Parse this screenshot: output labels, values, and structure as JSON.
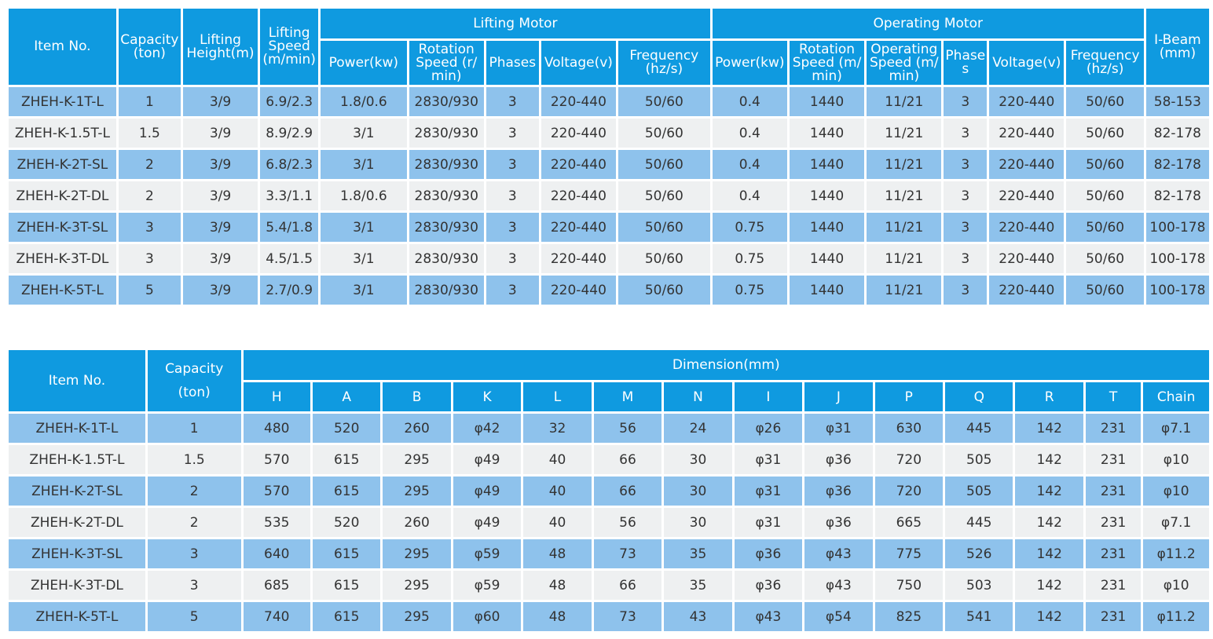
{
  "table1": {
    "headers": {
      "item_no": "Item No.",
      "capacity": "Capacity (ton)",
      "lifting_height": "Lifting Height(m)",
      "lifting_speed": "Lifting Speed (m/min)",
      "lifting_motor": "Lifting Motor",
      "operating_motor": "Operating Motor",
      "i_beam": "I-Beam (mm)",
      "lm_sub": [
        "Power(kw)",
        "Rotation Speed (r/ min)",
        "Phases",
        "Voltage(v)",
        "Frequency (hz/s)"
      ],
      "om_sub": [
        "Power(kw)",
        "Rotation Speed (m/ min)",
        "Operating Speed (m/ min)",
        "Phases",
        "Voltage(v)",
        "Frequency (hz/s)"
      ]
    },
    "rows": [
      [
        "ZHEH-K-1T-L",
        "1",
        "3/9",
        "6.9/2.3",
        "1.8/0.6",
        "2830/930",
        "3",
        "220-440",
        "50/60",
        "0.4",
        "1440",
        "11/21",
        "3",
        "220-440",
        "50/60",
        "58-153"
      ],
      [
        "ZHEH-K-1.5T-L",
        "1.5",
        "3/9",
        "8.9/2.9",
        "3/1",
        "2830/930",
        "3",
        "220-440",
        "50/60",
        "0.4",
        "1440",
        "11/21",
        "3",
        "220-440",
        "50/60",
        "82-178"
      ],
      [
        "ZHEH-K-2T-SL",
        "2",
        "3/9",
        "6.8/2.3",
        "3/1",
        "2830/930",
        "3",
        "220-440",
        "50/60",
        "0.4",
        "1440",
        "11/21",
        "3",
        "220-440",
        "50/60",
        "82-178"
      ],
      [
        "ZHEH-K-2T-DL",
        "2",
        "3/9",
        "3.3/1.1",
        "1.8/0.6",
        "2830/930",
        "3",
        "220-440",
        "50/60",
        "0.4",
        "1440",
        "11/21",
        "3",
        "220-440",
        "50/60",
        "82-178"
      ],
      [
        "ZHEH-K-3T-SL",
        "3",
        "3/9",
        "5.4/1.8",
        "3/1",
        "2830/930",
        "3",
        "220-440",
        "50/60",
        "0.75",
        "1440",
        "11/21",
        "3",
        "220-440",
        "50/60",
        "100-178"
      ],
      [
        "ZHEH-K-3T-DL",
        "3",
        "3/9",
        "4.5/1.5",
        "3/1",
        "2830/930",
        "3",
        "220-440",
        "50/60",
        "0.75",
        "1440",
        "11/21",
        "3",
        "220-440",
        "50/60",
        "100-178"
      ],
      [
        "ZHEH-K-5T-L",
        "5",
        "3/9",
        "2.7/0.9",
        "3/1",
        "2830/930",
        "3",
        "220-440",
        "50/60",
        "0.75",
        "1440",
        "11/21",
        "3",
        "220-440",
        "50/60",
        "100-178"
      ]
    ]
  },
  "table2": {
    "headers": {
      "item_no": "Item No.",
      "capacity": "Capacity (ton)",
      "dimension": "Dimension(mm)",
      "dims": [
        "H",
        "A",
        "B",
        "K",
        "L",
        "M",
        "N",
        "I",
        "J",
        "P",
        "Q",
        "R",
        "T",
        "Chain"
      ]
    },
    "rows": [
      [
        "ZHEH-K-1T-L",
        "1",
        "480",
        "520",
        "260",
        "φ42",
        "32",
        "56",
        "24",
        "φ26",
        "φ31",
        "630",
        "445",
        "142",
        "231",
        "φ7.1"
      ],
      [
        "ZHEH-K-1.5T-L",
        "1.5",
        "570",
        "615",
        "295",
        "φ49",
        "40",
        "66",
        "30",
        "φ31",
        "φ36",
        "720",
        "505",
        "142",
        "231",
        "φ10"
      ],
      [
        "ZHEH-K-2T-SL",
        "2",
        "570",
        "615",
        "295",
        "φ49",
        "40",
        "66",
        "30",
        "φ31",
        "φ36",
        "720",
        "505",
        "142",
        "231",
        "φ10"
      ],
      [
        "ZHEH-K-2T-DL",
        "2",
        "535",
        "520",
        "260",
        "φ49",
        "40",
        "56",
        "30",
        "φ31",
        "φ36",
        "665",
        "445",
        "142",
        "231",
        "φ7.1"
      ],
      [
        "ZHEH-K-3T-SL",
        "3",
        "640",
        "615",
        "295",
        "φ59",
        "48",
        "73",
        "35",
        "φ36",
        "φ43",
        "775",
        "526",
        "142",
        "231",
        "φ11.2"
      ],
      [
        "ZHEH-K-3T-DL",
        "3",
        "685",
        "615",
        "295",
        "φ59",
        "48",
        "66",
        "35",
        "φ36",
        "φ43",
        "750",
        "503",
        "142",
        "231",
        "φ10"
      ],
      [
        "ZHEH-K-5T-L",
        "5",
        "740",
        "615",
        "295",
        "φ60",
        "48",
        "73",
        "43",
        "φ43",
        "φ54",
        "825",
        "541",
        "142",
        "231",
        "φ11.2"
      ]
    ]
  }
}
